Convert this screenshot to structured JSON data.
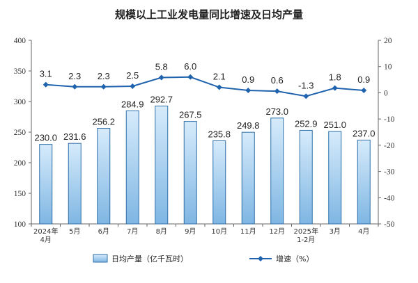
{
  "chart_data": {
    "title": "规模以上工业发电量同比增速及日均产量",
    "categories": [
      [
        "2024年",
        "4月"
      ],
      [
        "5月"
      ],
      [
        "6月"
      ],
      [
        "7月"
      ],
      [
        "8月"
      ],
      [
        "9月"
      ],
      [
        "10月"
      ],
      [
        "11月"
      ],
      [
        "12月"
      ],
      [
        "2025年",
        "1-2月"
      ],
      [
        "3月"
      ],
      [
        "4月"
      ]
    ],
    "series": [
      {
        "name": "日均产量（亿千瓦时）",
        "type": "bar",
        "axis": "left",
        "values": [
          230.0,
          231.6,
          256.2,
          284.9,
          292.7,
          267.5,
          235.8,
          249.8,
          273.0,
          252.9,
          251.0,
          237.0
        ],
        "labels": [
          "230.0",
          "231.6",
          "256.2",
          "284.9",
          "292.7",
          "267.5",
          "235.8",
          "249.8",
          "273.0",
          "252.9",
          "251.0",
          "237.0"
        ]
      },
      {
        "name": "增速（%）",
        "type": "line",
        "axis": "right",
        "values": [
          3.1,
          2.3,
          2.3,
          2.5,
          5.8,
          6.0,
          2.1,
          0.9,
          0.6,
          -1.3,
          1.8,
          0.9
        ],
        "labels": [
          "3.1",
          "2.3",
          "2.3",
          "2.5",
          "5.8",
          "6.0",
          "2.1",
          "0.9",
          "0.6",
          "-1.3",
          "1.8",
          "0.9"
        ]
      }
    ],
    "left_axis": {
      "min": 100,
      "max": 400,
      "ticks": [
        "100",
        "150",
        "200",
        "250",
        "300",
        "350",
        "400"
      ]
    },
    "right_axis": {
      "min": -50,
      "max": 20,
      "ticks": [
        "-50",
        "-40",
        "-30",
        "-20",
        "-10",
        "0",
        "10",
        "20"
      ]
    },
    "grid": false,
    "legend_position": "bottom",
    "colors": {
      "bar_fill_top": "#d6ebfb",
      "bar_fill_bottom": "#7fb6e3",
      "bar_stroke": "#2f6ea8",
      "line": "#1f62ad",
      "axis": "#666666"
    }
  }
}
